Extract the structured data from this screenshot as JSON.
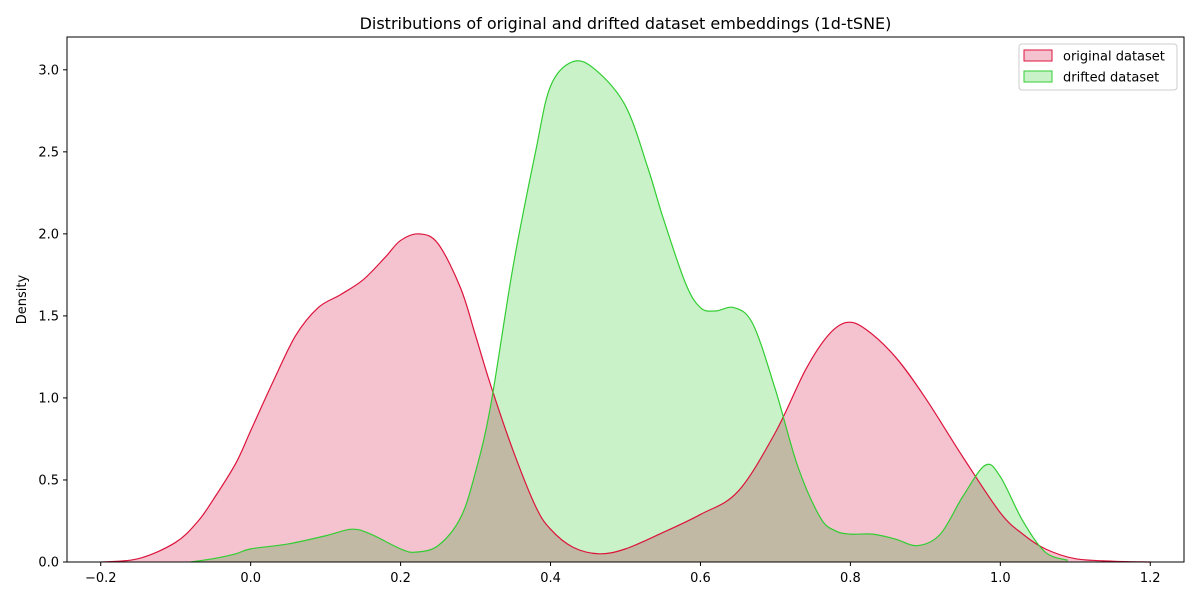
{
  "chart_data": {
    "type": "area",
    "title": "Distributions of original and drifted dataset embeddings (1d-tSNE)",
    "xlabel": "",
    "ylabel": "Density",
    "xlim": [
      -0.245,
      1.245
    ],
    "ylim": [
      0,
      3.2
    ],
    "x_ticks": [
      "−0.2",
      "0.0",
      "0.2",
      "0.4",
      "0.6",
      "0.8",
      "1.0",
      "1.2"
    ],
    "x_tick_values": [
      -0.2,
      0.0,
      0.2,
      0.4,
      0.6,
      0.8,
      1.0,
      1.2
    ],
    "y_ticks": [
      "0.0",
      "0.5",
      "1.0",
      "1.5",
      "2.0",
      "2.5",
      "3.0"
    ],
    "y_tick_values": [
      0.0,
      0.5,
      1.0,
      1.5,
      2.0,
      2.5,
      3.0
    ],
    "grid": false,
    "legend_position": "top-right",
    "series": [
      {
        "name": "original dataset",
        "color": "#dc143c",
        "fill": "#f5c3d0",
        "x": [
          -0.2,
          -0.15,
          -0.1,
          -0.07,
          -0.05,
          -0.02,
          0.0,
          0.03,
          0.06,
          0.09,
          0.12,
          0.15,
          0.18,
          0.2,
          0.225,
          0.25,
          0.28,
          0.3,
          0.32,
          0.35,
          0.38,
          0.4,
          0.43,
          0.465,
          0.5,
          0.55,
          0.6,
          0.65,
          0.7,
          0.74,
          0.77,
          0.795,
          0.82,
          0.86,
          0.9,
          0.95,
          1.0,
          1.03,
          1.06,
          1.1,
          1.15,
          1.2
        ],
        "y": [
          0.0,
          0.02,
          0.12,
          0.25,
          0.38,
          0.6,
          0.8,
          1.1,
          1.38,
          1.55,
          1.63,
          1.72,
          1.86,
          1.96,
          2.0,
          1.94,
          1.67,
          1.38,
          1.08,
          0.68,
          0.34,
          0.2,
          0.09,
          0.05,
          0.08,
          0.18,
          0.29,
          0.43,
          0.79,
          1.17,
          1.38,
          1.46,
          1.42,
          1.25,
          1.0,
          0.64,
          0.3,
          0.17,
          0.08,
          0.02,
          0.005,
          0.0
        ]
      },
      {
        "name": "drifted dataset",
        "color": "#32cd32",
        "fill": "#c9f2c9",
        "x": [
          -0.08,
          -0.05,
          -0.02,
          0.0,
          0.05,
          0.1,
          0.135,
          0.16,
          0.2,
          0.22,
          0.25,
          0.28,
          0.3,
          0.32,
          0.35,
          0.38,
          0.4,
          0.43,
          0.46,
          0.5,
          0.53,
          0.55,
          0.58,
          0.6,
          0.62,
          0.645,
          0.67,
          0.7,
          0.73,
          0.76,
          0.78,
          0.8,
          0.83,
          0.86,
          0.89,
          0.92,
          0.95,
          0.98,
          1.0,
          1.03,
          1.06,
          1.09
        ],
        "y": [
          0.0,
          0.02,
          0.05,
          0.08,
          0.11,
          0.16,
          0.2,
          0.17,
          0.08,
          0.06,
          0.1,
          0.27,
          0.55,
          0.95,
          1.8,
          2.5,
          2.9,
          3.05,
          3.0,
          2.78,
          2.4,
          2.1,
          1.7,
          1.55,
          1.53,
          1.55,
          1.45,
          1.05,
          0.58,
          0.27,
          0.19,
          0.17,
          0.17,
          0.14,
          0.1,
          0.17,
          0.4,
          0.59,
          0.52,
          0.25,
          0.06,
          0.01
        ]
      }
    ]
  }
}
